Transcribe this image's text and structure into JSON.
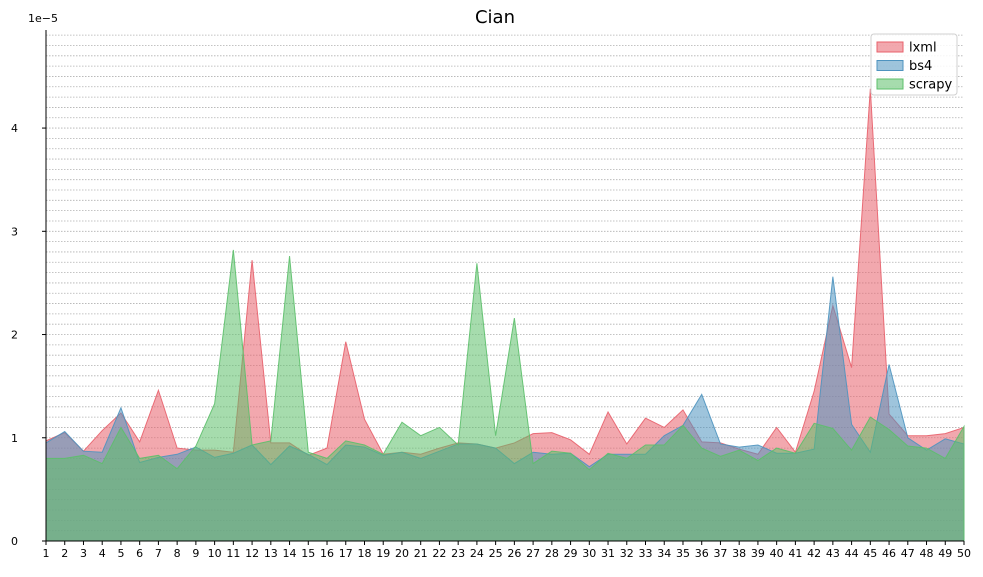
{
  "chart_data": {
    "type": "area",
    "title": "Cian",
    "xlabel": "",
    "ylabel": "",
    "y_offset_label": "1e−5",
    "ylim": [
      0,
      4.95
    ],
    "yticks": [
      0,
      1,
      2,
      3,
      4
    ],
    "grid": "horizontal dotted",
    "legend_position": "top-right",
    "x": [
      1,
      2,
      3,
      4,
      5,
      6,
      7,
      8,
      9,
      10,
      11,
      12,
      13,
      14,
      15,
      16,
      17,
      18,
      19,
      20,
      21,
      22,
      23,
      24,
      25,
      26,
      27,
      28,
      29,
      30,
      31,
      32,
      33,
      34,
      35,
      36,
      37,
      38,
      39,
      40,
      41,
      42,
      43,
      44,
      45,
      46,
      47,
      48,
      49,
      50
    ],
    "series": [
      {
        "name": "lxml",
        "color": "#e8616b",
        "values": [
          0.97,
          1.05,
          0.87,
          1.07,
          1.24,
          0.96,
          1.46,
          0.9,
          0.88,
          0.88,
          0.86,
          2.72,
          0.95,
          0.95,
          0.83,
          0.9,
          1.93,
          1.18,
          0.84,
          0.86,
          0.84,
          0.9,
          0.95,
          0.94,
          0.9,
          0.95,
          1.04,
          1.05,
          0.98,
          0.84,
          1.25,
          0.94,
          1.19,
          1.1,
          1.27,
          0.96,
          0.95,
          0.89,
          0.84,
          1.1,
          0.86,
          1.45,
          2.28,
          1.68,
          4.38,
          1.23,
          1.02,
          1.02,
          1.04,
          1.1
        ]
      },
      {
        "name": "bs4",
        "color": "#4e93bf",
        "values": [
          0.95,
          1.06,
          0.87,
          0.86,
          1.29,
          0.76,
          0.81,
          0.84,
          0.91,
          0.81,
          0.85,
          0.93,
          0.74,
          0.92,
          0.84,
          0.74,
          0.93,
          0.91,
          0.83,
          0.86,
          0.8,
          0.87,
          0.94,
          0.94,
          0.9,
          0.75,
          0.86,
          0.84,
          0.85,
          0.72,
          0.84,
          0.84,
          0.84,
          1.02,
          1.12,
          1.42,
          0.94,
          0.91,
          0.93,
          0.85,
          0.85,
          0.89,
          2.56,
          1.13,
          0.86,
          1.71,
          1.0,
          0.88,
          0.99,
          0.94
        ]
      },
      {
        "name": "scrapy",
        "color": "#5cbf6a",
        "values": [
          0.8,
          0.8,
          0.83,
          0.75,
          1.1,
          0.8,
          0.83,
          0.7,
          0.92,
          1.33,
          2.82,
          0.93,
          0.97,
          2.76,
          0.86,
          0.8,
          0.97,
          0.93,
          0.84,
          1.15,
          1.02,
          1.1,
          0.93,
          2.69,
          1.02,
          2.16,
          0.75,
          0.87,
          0.85,
          0.69,
          0.85,
          0.8,
          0.93,
          0.93,
          1.12,
          0.9,
          0.82,
          0.88,
          0.78,
          0.9,
          0.85,
          1.14,
          1.09,
          0.88,
          1.2,
          1.08,
          0.92,
          0.9,
          0.8,
          1.11
        ]
      }
    ]
  }
}
